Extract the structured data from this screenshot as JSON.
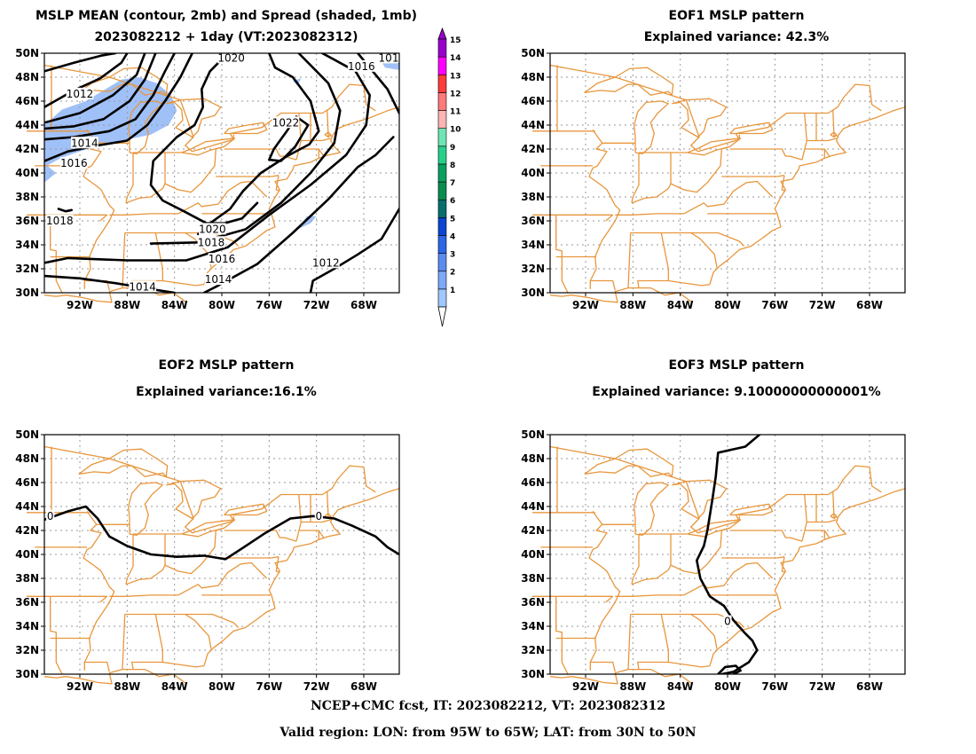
{
  "panels": [
    {
      "id": "mean",
      "title_line1": "MSLP MEAN (contour, 2mb) and Spread (shaded, 1mb)",
      "title_line2": "2023082212 + 1day (VT:2023082312)",
      "contour_labels": [
        "1020",
        "1016",
        "101",
        "1012",
        "1022",
        "1014",
        "1016",
        "1018",
        "1020",
        "1018",
        "1016",
        "1014",
        "1012",
        "1014"
      ]
    },
    {
      "id": "eof1",
      "title_line1": "EOF1 MSLP pattern",
      "title_line2": "Explained variance: 42.3%",
      "contour_labels": []
    },
    {
      "id": "eof2",
      "title_line1": "EOF2 MSLP pattern",
      "title_line2": "Explained variance:16.1%",
      "contour_labels": [
        "0",
        "0"
      ]
    },
    {
      "id": "eof3",
      "title_line1": "EOF3 MSLP pattern",
      "title_line2": "Explained variance: 9.10000000000001%",
      "contour_labels": [
        "0"
      ]
    }
  ],
  "axes": {
    "lat_ticks": [
      "50N",
      "48N",
      "46N",
      "44N",
      "42N",
      "40N",
      "38N",
      "36N",
      "34N",
      "32N",
      "30N"
    ],
    "lon_ticks": [
      "92W",
      "88W",
      "84W",
      "80W",
      "76W",
      "72W",
      "68W"
    ],
    "lon_range": [
      -95,
      -65
    ],
    "lat_range": [
      30,
      50
    ]
  },
  "colorbar": {
    "labels": [
      "1",
      "2",
      "3",
      "4",
      "5",
      "6",
      "7",
      "8",
      "9",
      "10",
      "11",
      "12",
      "13",
      "14",
      "15"
    ],
    "colors": [
      "#a0c8ff",
      "#7ea8f8",
      "#5a8cf0",
      "#2e66e6",
      "#0a46d2",
      "#0a6e6e",
      "#0a8c50",
      "#0aa060",
      "#28d08c",
      "#6ee6b4",
      "#ffb4b4",
      "#ff7a7a",
      "#ff3c3c",
      "#ff00ff",
      "#9900cc"
    ]
  },
  "colors": {
    "boundary": "#e8963c",
    "contour": "#000000",
    "spread": "#a0c0f8",
    "grid": "#999999"
  },
  "footer_line1": "NCEP+CMC fcst, IT: 2023082212, VT: 2023082312",
  "footer_line2": "Valid region: LON: from 95W to 65W; LAT: from 30N to 50N"
}
